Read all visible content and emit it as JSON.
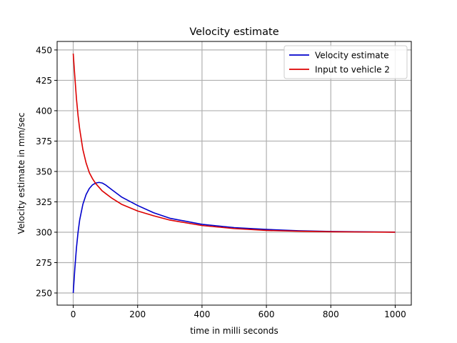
{
  "chart_data": {
    "type": "line",
    "title": "Velocity estimate",
    "xlabel": "time in milli seconds",
    "ylabel": "Velocity estimate in mm/sec",
    "xlim": [
      -50,
      1050
    ],
    "ylim": [
      240,
      457
    ],
    "xticks": [
      0,
      200,
      400,
      600,
      800,
      1000
    ],
    "xtick_labels": [
      "0",
      "200",
      "400",
      "600",
      "800",
      "1000"
    ],
    "yticks": [
      250,
      275,
      300,
      325,
      350,
      375,
      400,
      425,
      450
    ],
    "ytick_labels": [
      "250",
      "275",
      "300",
      "325",
      "350",
      "375",
      "400",
      "425",
      "450"
    ],
    "grid": true,
    "legend_position": "top-right",
    "series": [
      {
        "name": "Velocity estimate",
        "color": "#0000cc",
        "x": [
          0,
          5,
          10,
          15,
          20,
          30,
          40,
          50,
          60,
          70,
          80,
          90,
          100,
          120,
          150,
          200,
          250,
          300,
          400,
          500,
          600,
          700,
          800,
          900,
          1000
        ],
        "y": [
          250,
          270,
          287,
          300,
          310,
          323,
          331,
          336,
          339,
          340.5,
          341,
          340.5,
          339,
          335,
          329,
          322,
          316,
          311.5,
          306.5,
          303.8,
          302.3,
          301.2,
          300.6,
          300.3,
          300.1
        ]
      },
      {
        "name": "Input to vehicle 2",
        "color": "#dd0000",
        "x": [
          0,
          5,
          10,
          15,
          20,
          30,
          40,
          50,
          60,
          70,
          80,
          90,
          100,
          120,
          150,
          200,
          250,
          300,
          400,
          500,
          600,
          700,
          800,
          900,
          1000
        ],
        "y": [
          447,
          428,
          410,
          396,
          385,
          368,
          357,
          349,
          344,
          340,
          337,
          334,
          332,
          328,
          323,
          317.5,
          313.5,
          310,
          305.5,
          303,
          301.5,
          300.8,
          300.4,
          300.2,
          300
        ]
      }
    ]
  }
}
